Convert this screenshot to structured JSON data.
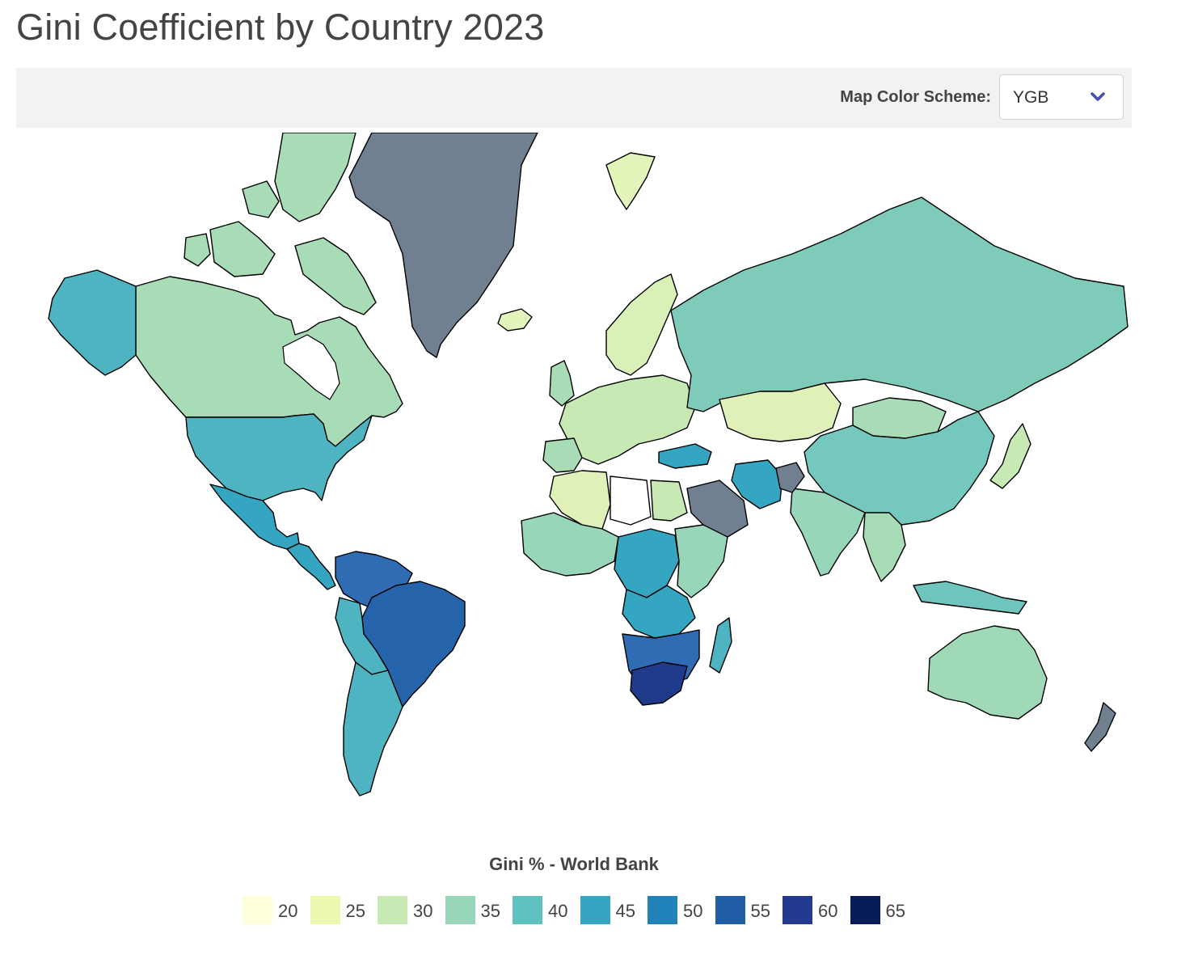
{
  "title": "Gini Coefficient by Country 2023",
  "toolbar": {
    "scheme_label": "Map Color Scheme:",
    "scheme_value": "YGB",
    "scheme_icon": "chevron-down-icon",
    "icon_color": "#3f51b5"
  },
  "legend": {
    "title": "Gini % - World Bank",
    "items": [
      {
        "label": "20",
        "color": "#ffffd9"
      },
      {
        "label": "25",
        "color": "#edf8b1"
      },
      {
        "label": "30",
        "color": "#c7e9b4"
      },
      {
        "label": "35",
        "color": "#97d6b9"
      },
      {
        "label": "40",
        "color": "#5fc1c0"
      },
      {
        "label": "45",
        "color": "#35a6c2"
      },
      {
        "label": "50",
        "color": "#2181b9"
      },
      {
        "label": "55",
        "color": "#225ea8"
      },
      {
        "label": "60",
        "color": "#223a90"
      },
      {
        "label": "65",
        "color": "#081d58"
      }
    ],
    "no_data_color": "#708090"
  }
}
